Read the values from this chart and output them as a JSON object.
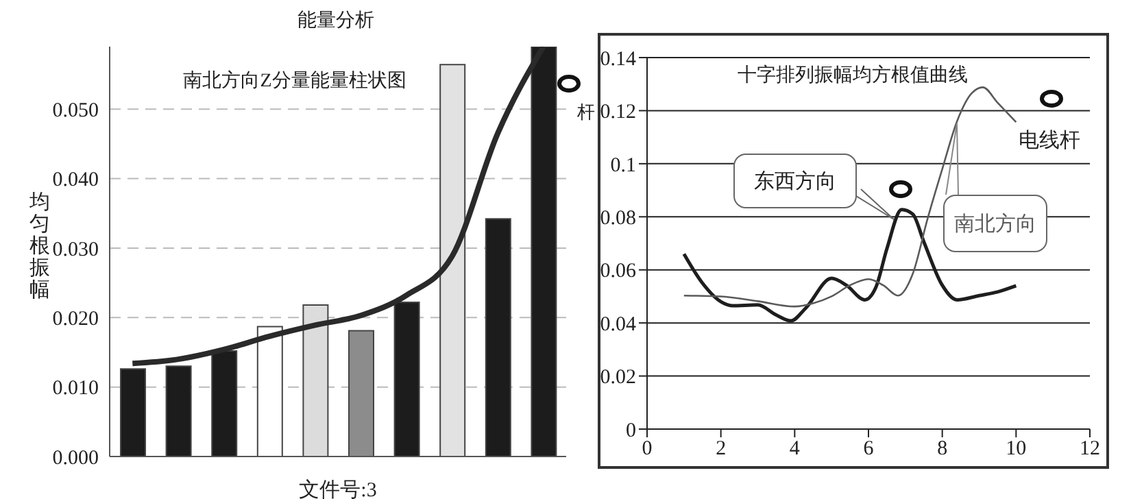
{
  "chart_data": [
    {
      "type": "bar",
      "title": "能量分析",
      "subtitle": "南北方向Z分量能量柱状图",
      "xlabel": "文件号:3",
      "ylabel": "均匀根振幅",
      "annotations": [
        "杆"
      ],
      "categories": [
        null,
        null,
        null,
        null,
        null,
        null,
        null,
        null,
        null,
        null
      ],
      "series": [
        {
          "type": "bar",
          "colors": [
            "#1c1c1c",
            "#1c1c1c",
            "#1c1c1c",
            "#ffffff",
            "#dcdcdc",
            "#8c8c8c",
            "#1c1c1c",
            "#e2e2e2",
            "#1c1c1c",
            "#1c1c1c"
          ],
          "values": [
            0.0126,
            0.013,
            0.0152,
            0.0187,
            0.0218,
            0.0181,
            0.0222,
            0.0564,
            0.0342,
            0.059
          ]
        },
        {
          "type": "line",
          "color": "#2a2a2a",
          "values": [
            0.0134,
            0.014,
            0.0154,
            0.0173,
            0.0189,
            0.0203,
            0.0232,
            0.0288,
            0.0465,
            0.059
          ]
        }
      ],
      "ylim": [
        0,
        0.059
      ],
      "yticks": [
        {
          "value": 0,
          "label": "0.000"
        },
        {
          "value": 0.01,
          "label": "0.010"
        },
        {
          "value": 0.02,
          "label": "0.020"
        },
        {
          "value": 0.03,
          "label": "0.030"
        },
        {
          "value": 0.04,
          "label": "0.040"
        },
        {
          "value": 0.05,
          "label": "0.050"
        }
      ],
      "grid": "y",
      "tick_labels": "y",
      "marker": "none"
    },
    {
      "type": "line",
      "title": "十字排列振幅均方根值曲线",
      "annotations": [
        "电线杆"
      ],
      "series": [
        {
          "name": "东西方向",
          "color": "#1e1e1e",
          "x": [
            1,
            1.5,
            2,
            2.3,
            3,
            3.5,
            3.9,
            4.3,
            5,
            5.4,
            5.9,
            6.2,
            6.5,
            6.9,
            7.2,
            7.5,
            8,
            8.4,
            9,
            9.5,
            10
          ],
          "values": [
            0.066,
            0.055,
            0.048,
            0.0465,
            0.0468,
            0.043,
            0.0408,
            0.0456,
            0.0568,
            0.0542,
            0.0487,
            0.0534,
            0.068,
            0.0827,
            0.081,
            0.0706,
            0.0542,
            0.0487,
            0.0503,
            0.0517,
            0.054
          ]
        },
        {
          "name": "南北方向",
          "color": "#5a5a5a",
          "x": [
            1,
            2,
            3,
            4,
            4.5,
            5,
            5.5,
            6,
            6.4,
            6.8,
            7.2,
            7.6,
            8,
            8.4,
            8.8,
            9.1,
            9.5,
            10
          ],
          "values": [
            0.0503,
            0.05,
            0.0482,
            0.0462,
            0.0474,
            0.05,
            0.0542,
            0.0565,
            0.0542,
            0.0503,
            0.0585,
            0.0792,
            0.098,
            0.116,
            0.1266,
            0.1288,
            0.123,
            0.1157
          ]
        }
      ],
      "xlim": [
        0,
        12
      ],
      "xticks": [
        0,
        2,
        4,
        6,
        8,
        10,
        12
      ],
      "ylim": [
        0,
        0.14
      ],
      "yticks": [
        0,
        0.02,
        0.04,
        0.06,
        0.08,
        0.1,
        0.12,
        0.14
      ],
      "grid": "y",
      "marker": "none"
    }
  ]
}
